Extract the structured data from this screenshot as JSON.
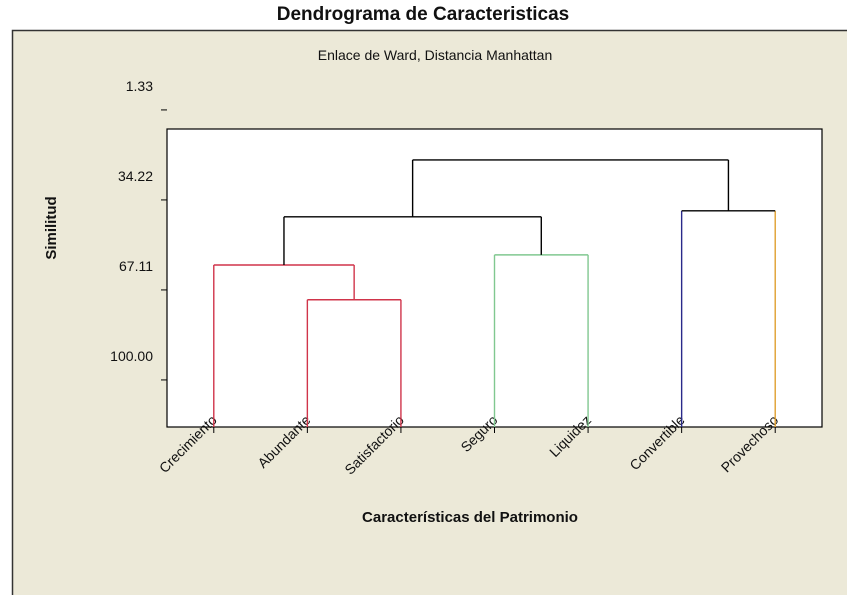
{
  "chart_data": {
    "type": "dendrogram",
    "title": "Dendrograma de Caracteristicas",
    "subtitle": "Enlace de Ward, Distancia Manhattan",
    "x_label": "Características del Patrimonio",
    "y_label": "Similitud",
    "leaves": [
      "Crecimiento",
      "Abundante",
      "Satisfactorio",
      "Seguro",
      "Liquidez",
      "Convertible",
      "Provechoso"
    ],
    "leaf_colors": [
      "#d0344a",
      "#d0344a",
      "#d0344a",
      "#80c890",
      "#80c890",
      "#2a2a8a",
      "#e0a030"
    ],
    "merges": [
      {
        "children": [
          1,
          2
        ],
        "height": 70.7,
        "color": "#d0344a"
      },
      {
        "children": [
          0,
          7
        ],
        "height": 58.0,
        "color": "#d0344a"
      },
      {
        "children": [
          3,
          4
        ],
        "height": 54.3,
        "color": "#80c890"
      },
      {
        "children": [
          5,
          6
        ],
        "height": 38.2,
        "color": "#000000"
      },
      {
        "children": [
          8,
          9
        ],
        "height": 40.4,
        "color": "#000000"
      },
      {
        "children": [
          11,
          10
        ],
        "height": 19.6,
        "color": "#000000"
      }
    ],
    "ylim": [
      117.2,
      8.3
    ],
    "yticks": [
      {
        "value": 1.33,
        "label": "1.33"
      },
      {
        "value": 34.22,
        "label": "34.22"
      },
      {
        "value": 67.11,
        "label": "67.11"
      },
      {
        "value": 100,
        "label": "100.00"
      }
    ]
  }
}
